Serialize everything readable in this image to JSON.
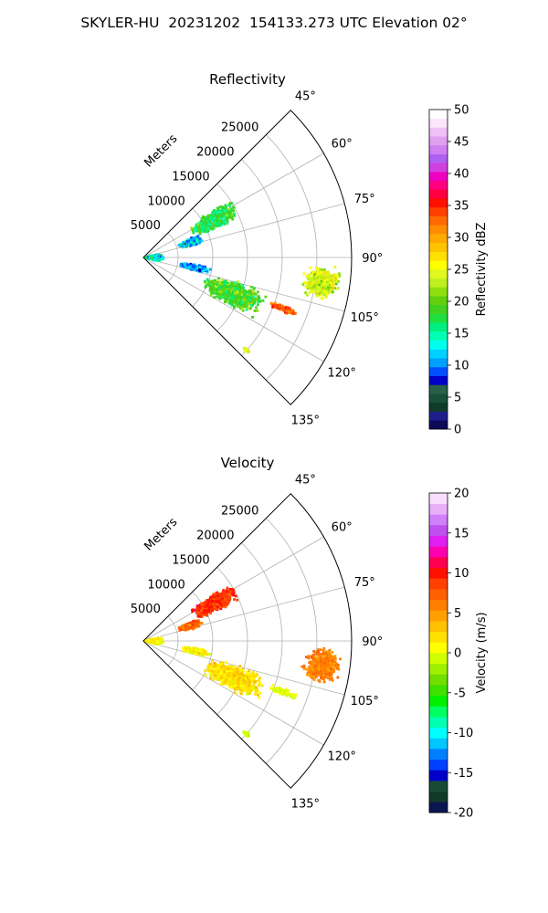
{
  "title": "SKYLER-HU  20231202  154133.273 UTC Elevation 02°",
  "chart_data": [
    {
      "type": "polar-ppi",
      "title": "Reflectivity",
      "radial_unit_label": "Meters",
      "range_ticks": [
        "5000",
        "10000",
        "15000",
        "20000",
        "25000"
      ],
      "range_tick_values": [
        5000,
        10000,
        15000,
        20000,
        25000
      ],
      "rmax": 30000,
      "azimuth_ticks": [
        "45°",
        "60°",
        "75°",
        "90°",
        "105°",
        "120°",
        "135°"
      ],
      "azimuth_tick_values": [
        45,
        60,
        75,
        90,
        105,
        120,
        135
      ],
      "azimuth_range": [
        45,
        135
      ],
      "grid": true,
      "colorbar": {
        "label": "Reflectivity dBZ",
        "ticks": [
          "0",
          "5",
          "10",
          "15",
          "20",
          "25",
          "30",
          "35",
          "40",
          "45",
          "50"
        ],
        "range": [
          0,
          50
        ]
      },
      "echo_regions": [
        {
          "az": 62,
          "r": 11500,
          "daz": 7,
          "dr": 4000,
          "level": 18,
          "spread": 4
        },
        {
          "az": 72,
          "r": 7000,
          "daz": 5,
          "dr": 2000,
          "level": 12,
          "spread": 5
        },
        {
          "az": 90,
          "r": 1500,
          "daz": 16,
          "dr": 1500,
          "level": 14,
          "spread": 4
        },
        {
          "az": 98,
          "r": 26000,
          "daz": 6,
          "dr": 3000,
          "level": 24,
          "spread": 4
        },
        {
          "az": 112,
          "r": 14000,
          "daz": 8,
          "dr": 5000,
          "level": 19,
          "spread": 4
        },
        {
          "az": 101,
          "r": 7500,
          "daz": 4,
          "dr": 2500,
          "level": 11,
          "spread": 3
        },
        {
          "az": 110,
          "r": 21500,
          "daz": 1.5,
          "dr": 2500,
          "level": 33,
          "spread": 3
        },
        {
          "az": 132,
          "r": 20000,
          "daz": 1,
          "dr": 800,
          "level": 25,
          "spread": 2
        }
      ]
    },
    {
      "type": "polar-ppi",
      "title": "Velocity",
      "radial_unit_label": "Meters",
      "range_ticks": [
        "5000",
        "10000",
        "15000",
        "20000",
        "25000"
      ],
      "range_tick_values": [
        5000,
        10000,
        15000,
        20000,
        25000
      ],
      "rmax": 30000,
      "azimuth_ticks": [
        "45°",
        "60°",
        "75°",
        "90°",
        "105°",
        "120°",
        "135°"
      ],
      "azimuth_tick_values": [
        45,
        60,
        75,
        90,
        105,
        120,
        135
      ],
      "azimuth_range": [
        45,
        135
      ],
      "grid": true,
      "colorbar": {
        "label": "Velocity (m/s)",
        "ticks": [
          "-20",
          "-15",
          "-10",
          "-5",
          "0",
          "5",
          "10",
          "15",
          "20"
        ],
        "range": [
          -20,
          20
        ]
      },
      "echo_regions": [
        {
          "az": 62,
          "r": 11500,
          "daz": 7,
          "dr": 4000,
          "level": 9,
          "spread": 2
        },
        {
          "az": 72,
          "r": 7000,
          "daz": 5,
          "dr": 2000,
          "level": 7,
          "spread": 2
        },
        {
          "az": 90,
          "r": 1500,
          "daz": 16,
          "dr": 1500,
          "level": 1,
          "spread": 2
        },
        {
          "az": 98,
          "r": 26000,
          "daz": 6,
          "dr": 3000,
          "level": 6,
          "spread": 1.5
        },
        {
          "az": 112,
          "r": 14000,
          "daz": 8,
          "dr": 5000,
          "level": 2,
          "spread": 2
        },
        {
          "az": 101,
          "r": 7500,
          "daz": 4,
          "dr": 2500,
          "level": 1,
          "spread": 2
        },
        {
          "az": 110,
          "r": 21500,
          "daz": 1.5,
          "dr": 2500,
          "level": 0,
          "spread": 1
        },
        {
          "az": 132,
          "r": 20000,
          "daz": 1,
          "dr": 800,
          "level": -1,
          "spread": 1
        }
      ]
    }
  ],
  "colors": {
    "reflectivity_scale": [
      "#0b0b5a",
      "#1e1e8a",
      "#0e3c2a",
      "#18503a",
      "#28604a",
      "#0000c8",
      "#0050ff",
      "#00a0ff",
      "#00d2ff",
      "#00ffee",
      "#00ffb4",
      "#00f080",
      "#20e040",
      "#40d020",
      "#60d010",
      "#90e010",
      "#c0f020",
      "#e0f820",
      "#ffff00",
      "#ffe000",
      "#ffc400",
      "#ffaa00",
      "#ff8c00",
      "#ff6a00",
      "#ff4000",
      "#ff1000",
      "#ff0040",
      "#ff0080",
      "#f000c0",
      "#d040e0",
      "#b060f0",
      "#d080f0",
      "#e0a0f0",
      "#f0c0f8",
      "#fce6fc",
      "#ffffff"
    ],
    "velocity_scale": [
      "#0a1650",
      "#123a2a",
      "#184a38",
      "#0000c8",
      "#0040ff",
      "#0080ff",
      "#00c8ff",
      "#00ffff",
      "#00ffb0",
      "#00ff60",
      "#00f000",
      "#40e000",
      "#70e000",
      "#a0f000",
      "#d0ff00",
      "#ffff00",
      "#ffe000",
      "#ffc000",
      "#ffa000",
      "#ff8000",
      "#ff6000",
      "#ff4000",
      "#ff1000",
      "#ff0050",
      "#ff00b0",
      "#e020f0",
      "#c050f0",
      "#d080f8",
      "#e8b0f8",
      "#f8e0fc"
    ]
  }
}
